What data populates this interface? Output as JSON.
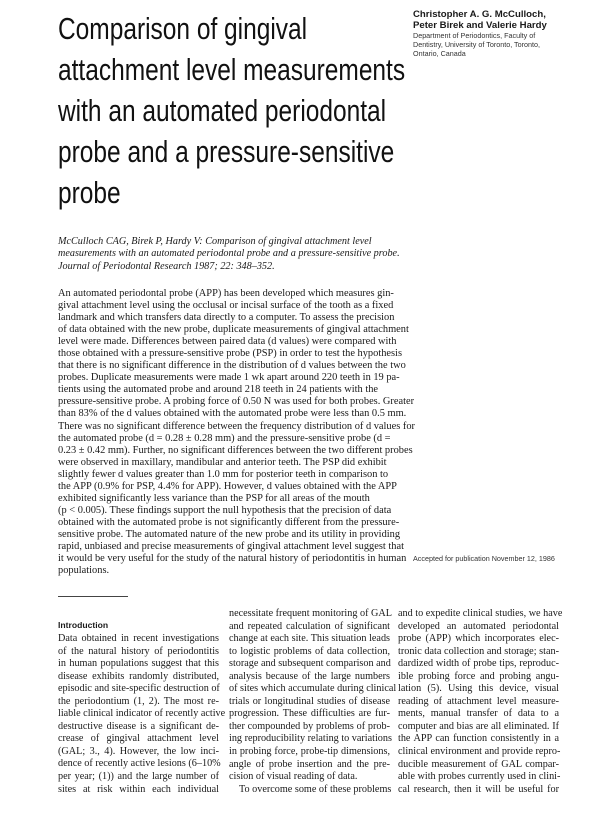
{
  "title_lines": [
    "Comparison of gingival",
    "attachment level measurements",
    "with an automated periodontal",
    "probe and a pressure-sensitive",
    "probe"
  ],
  "authors": {
    "names": [
      "Christopher A. G. McCulloch,",
      "Peter Birek and Valerie Hardy"
    ],
    "affiliation": [
      "Department of Periodontics, Faculty of",
      "Dentistry, University of Toronto, Toronto,",
      "Ontario, Canada"
    ]
  },
  "citation_lines": [
    "McCulloch CAG, Birek P, Hardy V: Comparison of gingival attachment level",
    "measurements with an automated periodontal probe and a pressure-sensitive probe.",
    "Journal of Periodontal Research 1987; 22: 348–352."
  ],
  "abstract_lines": [
    "An automated periodontal probe (APP) has been developed which measures gin-",
    "gival attachment level using the occlusal or incisal surface of the tooth as a fixed",
    "landmark and which transfers data directly to a computer. To assess the precision",
    "of data obtained with the new probe, duplicate measurements of gingival attachment",
    "level were made. Differences between paired data (d values) were compared with",
    "those obtained with a pressure-sensitive probe (PSP) in order to test the hypothesis",
    "that there is no significant difference in the distribution of d values between the two",
    "probes. Duplicate measurements were made 1 wk apart around 220 teeth in 19 pa-",
    "tients using the automated probe and around 218 teeth in 24 patients with the",
    "pressure-sensitive probe. A probing force of 0.50 N was used for both probes. Greater",
    "than 83% of the d values obtained with the automated probe were less than 0.5 mm.",
    "There was no significant difference between the frequency distribution of d values for",
    "the automated probe (d = 0.28 ± 0.28 mm) and the pressure-sensitive probe (d =",
    "0.23 ± 0.42 mm). Further, no significant differences between the two different probes",
    "were observed in maxillary, mandibular and anterior teeth. The PSP did exhibit",
    "slightly fewer d values greater than 1.0 mm for posterior teeth in comparison to",
    "the APP (0.9% for PSP, 4.4% for APP). However, d values obtained with the APP",
    "exhibited significantly less variance than the PSP for all areas of the mouth",
    "(p < 0.005). These findings support the null hypothesis that the precision of data",
    "obtained with the automated probe is not significantly different from the pressure-",
    "sensitive probe. The automated nature of the new probe and its utility in providing",
    "rapid, unbiased and precise measurements of gingival attachment level suggest that",
    "it would be very useful for the study of the natural history of periodontitis in human",
    "populations."
  ],
  "accepted": "Accepted for publication November 12, 1986",
  "intro_heading": "Introduction",
  "columns": [
    [
      "Data obtained in recent investigations",
      "of the natural history of periodontitis",
      "in human populations suggest that this",
      "disease exhibits randomly distributed,",
      "episodic and site-specific destruction of",
      "the periodontium (1, 2). The most re-",
      "liable clinical indicator of recently active",
      "destructive disease is a significant de-",
      "crease of gingival attachment level",
      "(GAL; 3., 4). However, the low inci-",
      "dence of recently active lesions (6–10%",
      "per year; (1)) and the large number of",
      "sites at risk within each individual"
    ],
    [
      "necessitate frequent monitoring of GAL",
      "and repeated calculation of significant",
      "change at each site. This situation leads",
      "to logistic problems of data collection,",
      "storage and subsequent comparison and",
      "analysis because of the large numbers",
      "of sites which accumulate during clinical",
      "trials or longitudinal studies of disease",
      "progression. These difficulties are fur-",
      "ther compounded by problems of prob-",
      "ing reproducibility relating to variations",
      "in probing force, probe-tip dimensions,",
      "angle of probe insertion and the pre-",
      "cision of visual reading of data.",
      "To overcome some of these problems"
    ],
    [
      "and to expedite clinical studies, we have",
      "developed an automated periodontal",
      "probe (APP) which incorporates elec-",
      "tronic data collection and storage; stan-",
      "dardized width of probe tips, reproduc-",
      "ible probing force and probing angu-",
      "lation (5). Using this device, visual",
      "reading of attachment level measure-",
      "ments, manual transfer of data to a",
      "computer and bias are all eliminated. If",
      "the APP can function consistently in a",
      "clinical environment and provide repro-",
      "ducible measurement of GAL compar-",
      "able with probes currently used in clini-",
      "cal research, then it will be useful for"
    ]
  ]
}
